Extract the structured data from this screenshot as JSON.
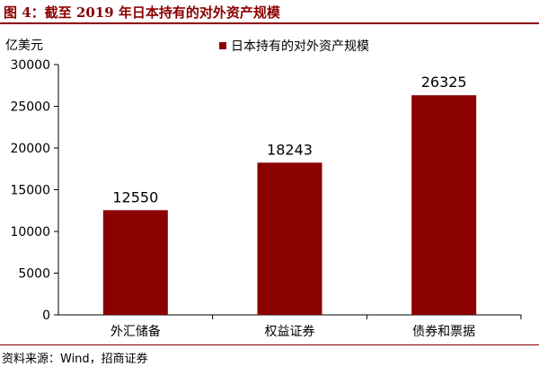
{
  "figure": {
    "title": "图 4：截至 2019 年日本持有的对外资产规模",
    "unit": "亿美元",
    "source": "资料来源：Wind，招商证券"
  },
  "colors": {
    "bar": "#8b0000",
    "accent": "#8b0000",
    "axis": "#000000"
  },
  "chart_data": {
    "type": "bar",
    "title": "",
    "xlabel": "",
    "ylabel": "亿美元",
    "categories": [
      "外汇储备",
      "权益证券",
      "债券和票据"
    ],
    "series": [
      {
        "name": "日本持有的对外资产规模",
        "values": [
          12550,
          18243,
          26325
        ]
      }
    ],
    "ylim": [
      0,
      30000
    ],
    "yticks": [
      0,
      5000,
      10000,
      15000,
      20000,
      25000,
      30000
    ],
    "data_labels": [
      "12550",
      "18243",
      "26325"
    ],
    "legend_position": "top-center",
    "grid": false
  }
}
